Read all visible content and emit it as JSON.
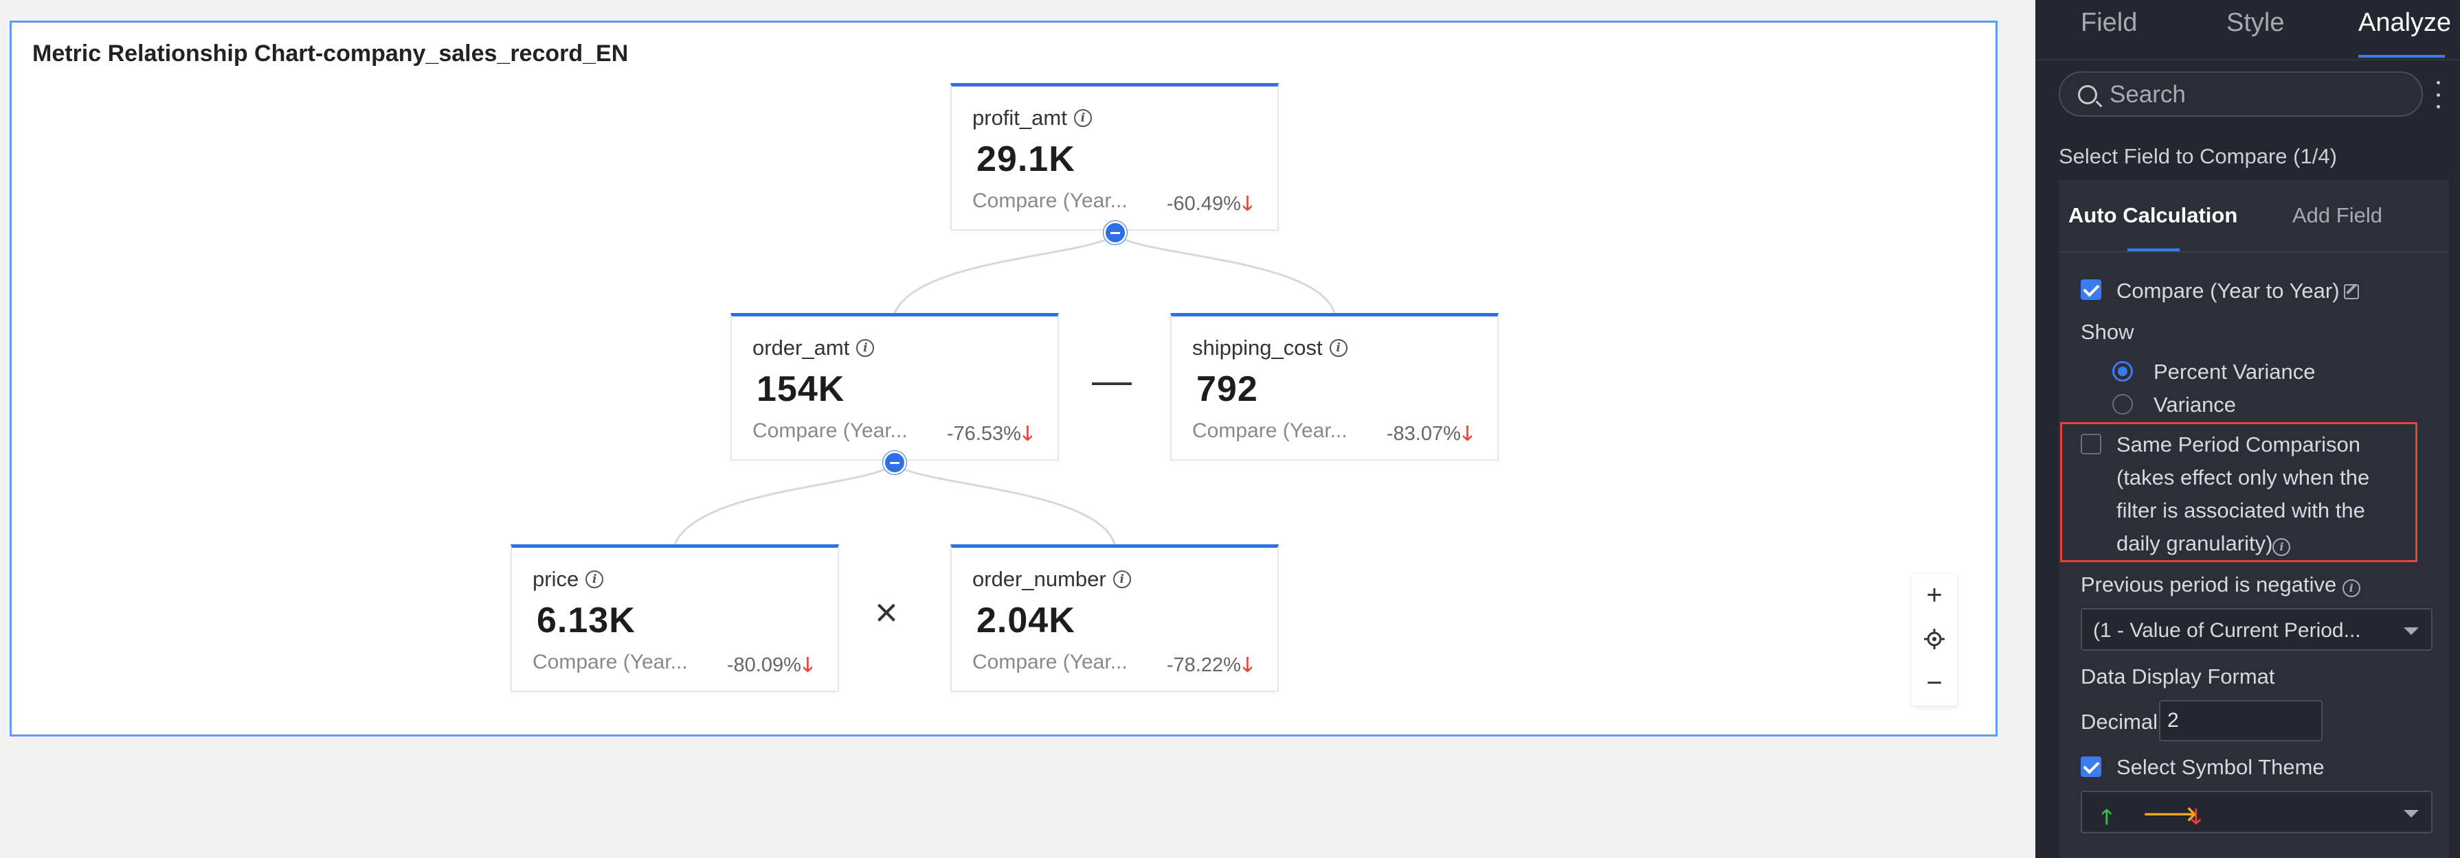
{
  "chart": {
    "title": "Metric Relationship Chart-company_sales_record_EN",
    "nodes": [
      {
        "id": "profit",
        "name": "profit_amt",
        "value": "29.1K",
        "compare": "Compare (Year...",
        "pct": "-60.49%"
      },
      {
        "id": "order",
        "name": "order_amt",
        "value": "154K",
        "compare": "Compare (Year...",
        "pct": "-76.53%"
      },
      {
        "id": "shipping",
        "name": "shipping_cost",
        "value": "792",
        "compare": "Compare (Year...",
        "pct": "-83.07%"
      },
      {
        "id": "price",
        "name": "price",
        "value": "6.13K",
        "compare": "Compare (Year...",
        "pct": "-80.09%"
      },
      {
        "id": "ordernum",
        "name": "order_number",
        "value": "2.04K",
        "compare": "Compare (Year...",
        "pct": "-78.22%"
      }
    ],
    "operators": {
      "minus": "—",
      "times": "×"
    },
    "down_color": "#e8433f",
    "accent": "#2f6fe4"
  },
  "panel": {
    "tabs": [
      "Field",
      "Style",
      "Analyze"
    ],
    "active_tab": "Analyze",
    "search": {
      "placeholder": "Search",
      "value": ""
    },
    "section_title": "Select Field to Compare (1/4)",
    "subtabs": [
      "Auto Calculation",
      "Add Field"
    ],
    "compare_label": "Compare (Year to Year)",
    "show_label": "Show",
    "show_options": [
      "Percent Variance",
      "Variance"
    ],
    "same_period_label": "Same Period Comparison (takes effect only when the filter is associated with the daily granularity)",
    "prev_negative_label": "Previous period is negative",
    "prev_negative_value": "(1 - Value of Current Period...",
    "data_format_label": "Data Display Format",
    "decimal_label": "Decimal",
    "decimal_value": "2",
    "symbol_theme_label": "Select Symbol Theme",
    "symbols": {
      "up": "🡑",
      "right": "🡒",
      "down": "🡓"
    },
    "symbol_colors": {
      "up": "#33c24a",
      "right": "#f5a623",
      "down": "#e8433f"
    },
    "highlight_color": "#e0463d"
  }
}
